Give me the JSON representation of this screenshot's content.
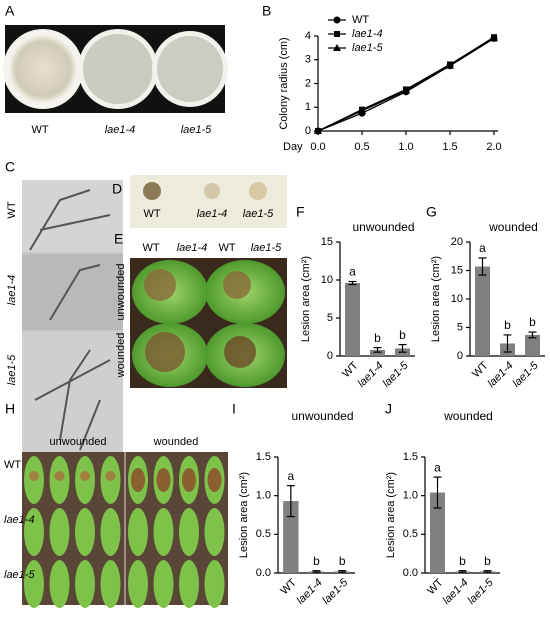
{
  "panels": [
    "A",
    "B",
    "C",
    "D",
    "E",
    "F",
    "G",
    "H",
    "I",
    "J"
  ],
  "labels": {
    "A": [
      "WT",
      "lae1-4",
      "lae1-5"
    ],
    "C": [
      "WT",
      "lae1-4",
      "lae1-5"
    ],
    "D": [
      "WT",
      "lae1-4",
      "lae1-5"
    ],
    "E": {
      "top": [
        "WT",
        "lae1-4",
        "WT",
        "lae1-5"
      ],
      "side": [
        "unwounded",
        "wounded"
      ]
    },
    "H": {
      "top": [
        "unwounded",
        "wounded"
      ],
      "side": [
        "WT",
        "lae1-4",
        "lae1-5"
      ]
    }
  },
  "chart_data": [
    {
      "type": "line",
      "xlabel": "Day",
      "ylabel": "Colony radius (cm)",
      "x": [
        0,
        0.5,
        1,
        1.5,
        2
      ],
      "xlim": [
        0,
        2
      ],
      "xticks": [
        {
          "value": 0,
          "label": "0.0"
        },
        {
          "value": 0.5,
          "label": "0.5"
        },
        {
          "value": 1,
          "label": "1.0"
        },
        {
          "value": 1.5,
          "label": "1.5"
        },
        {
          "value": 2,
          "label": "2.0"
        }
      ],
      "ylim": [
        0,
        4
      ],
      "yticks": [
        0,
        1,
        2,
        3,
        4
      ],
      "legend": "upper left",
      "series": [
        {
          "name": "WT",
          "color": "#000000",
          "values": [
            0,
            0.75,
            1.65,
            2.75,
            3.9
          ]
        },
        {
          "name": "lae1-4",
          "color": "#000000",
          "values": [
            0,
            0.9,
            1.75,
            2.8,
            3.95
          ]
        },
        {
          "name": "lae1-5",
          "color": "#000000",
          "values": [
            0,
            0.85,
            1.7,
            2.75,
            3.9
          ]
        }
      ]
    },
    {
      "type": "bar",
      "title": "unwounded",
      "ylabel": "Lesion area (cm²)",
      "categories": [
        "WT",
        "lae1-4",
        "lae1-5"
      ],
      "values": [
        9.6,
        0.8,
        1.0
      ],
      "errors": [
        0.2,
        0.3,
        0.5
      ],
      "annotations": [
        "a",
        "b",
        "b"
      ],
      "color": "#808080",
      "ylim": [
        0,
        15
      ],
      "yticks": [
        0,
        5,
        10,
        15
      ]
    },
    {
      "type": "bar",
      "title": "wounded",
      "ylabel": "Lesion area (cm²)",
      "categories": [
        "WT",
        "lae1-4",
        "lae1-5"
      ],
      "values": [
        15.7,
        2.2,
        3.7
      ],
      "errors": [
        1.5,
        1.5,
        0.5
      ],
      "annotations": [
        "a",
        "b",
        "b"
      ],
      "color": "#808080",
      "ylim": [
        0,
        20
      ],
      "yticks": [
        0,
        5,
        10,
        15,
        20
      ]
    },
    {
      "type": "bar",
      "title": "unwounded",
      "ylabel": "Lesion area (cm²)",
      "categories": [
        "WT",
        "lae1-4",
        "lae1-5"
      ],
      "values": [
        0.93,
        0.02,
        0.02
      ],
      "errors": [
        0.2,
        0.01,
        0.01
      ],
      "annotations": [
        "a",
        "b",
        "b"
      ],
      "color": "#808080",
      "ylim": [
        0,
        1.5
      ],
      "yticks": [
        {
          "value": 0,
          "label": "0.0"
        },
        {
          "value": 0.5,
          "label": "0.5"
        },
        {
          "value": 1,
          "label": "1.0"
        },
        {
          "value": 1.5,
          "label": "1.5"
        }
      ]
    },
    {
      "type": "bar",
      "title": "wounded",
      "ylabel": "Lesion area (cm²)",
      "categories": [
        "WT",
        "lae1-4",
        "lae1-5"
      ],
      "values": [
        1.04,
        0.02,
        0.02
      ],
      "errors": [
        0.2,
        0.01,
        0.01
      ],
      "annotations": [
        "a",
        "b",
        "b"
      ],
      "color": "#808080",
      "ylim": [
        0,
        1.5
      ],
      "yticks": [
        {
          "value": 0,
          "label": "0.0"
        },
        {
          "value": 0.5,
          "label": "0.5"
        },
        {
          "value": 1,
          "label": "1.0"
        },
        {
          "value": 1.5,
          "label": "1.5"
        }
      ]
    }
  ]
}
